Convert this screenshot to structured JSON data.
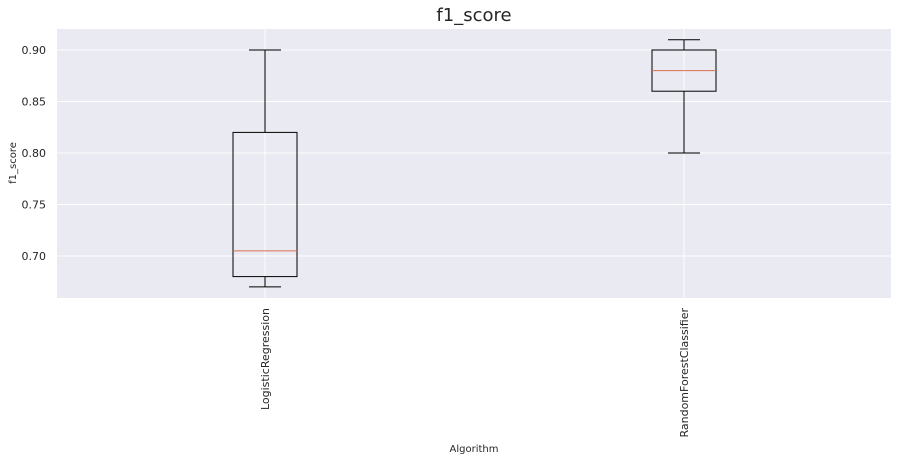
{
  "chart_data": {
    "type": "box",
    "title": "f1_score",
    "xlabel": "Algorithm",
    "ylabel": "f1_score",
    "ylim": [
      0.66,
      0.92
    ],
    "grid": true,
    "yticks": [
      {
        "value": 0.7,
        "label": "0.70"
      },
      {
        "value": 0.75,
        "label": "0.75"
      },
      {
        "value": 0.8,
        "label": "0.80"
      },
      {
        "value": 0.85,
        "label": "0.85"
      },
      {
        "value": 0.9,
        "label": "0.90"
      }
    ],
    "categories": [
      "LogisticRegression",
      "RandomForestClassifier"
    ],
    "boxes": [
      {
        "name": "LogisticRegression",
        "whisker_low": 0.67,
        "q1": 0.68,
        "median": 0.705,
        "q3": 0.82,
        "whisker_high": 0.9
      },
      {
        "name": "RandomForestClassifier",
        "whisker_low": 0.8,
        "q1": 0.86,
        "median": 0.88,
        "q3": 0.9,
        "whisker_high": 0.91
      }
    ],
    "colors": {
      "background": "#eaeaf2",
      "grid": "#ffffff",
      "box": "#000000",
      "median": "#d9704f",
      "text": "#262626"
    }
  }
}
